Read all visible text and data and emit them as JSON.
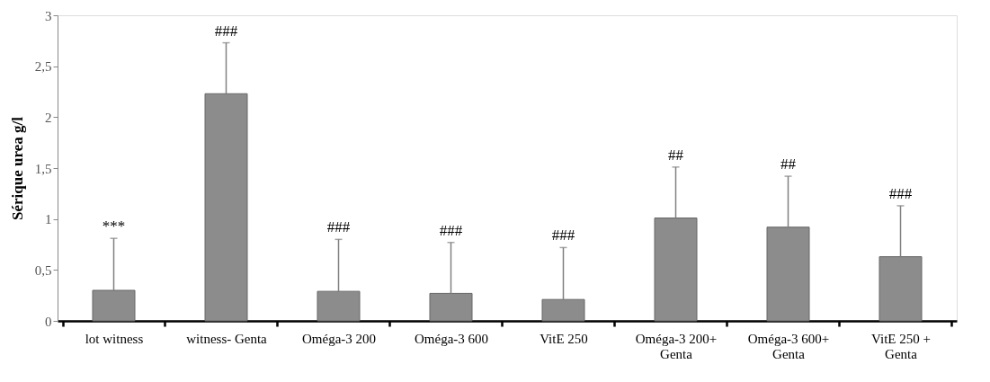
{
  "chart_data": {
    "type": "bar",
    "ylabel": "Sérique urea g/l",
    "categories": [
      "lot witness",
      "witness- Genta",
      "Oméga-3  200",
      "Oméga-3  600",
      "VitE 250",
      "Oméga-3  200+\nGenta",
      "Oméga-3  600+\nGenta",
      "VitE 250 +\nGenta"
    ],
    "values": [
      0.3,
      2.23,
      0.29,
      0.27,
      0.21,
      1.01,
      0.92,
      0.63
    ],
    "errors": [
      [
        0.3,
        0.81
      ],
      [
        2.23,
        2.73
      ],
      [
        0.29,
        0.8
      ],
      [
        0.27,
        0.77
      ],
      [
        0.21,
        0.72
      ],
      [
        1.01,
        1.51
      ],
      [
        0.92,
        1.42
      ],
      [
        0.63,
        1.13
      ]
    ],
    "color": "#8c8c8c",
    "ylim": [
      0,
      3
    ],
    "yticks": [
      0,
      {
        "value": 0.5,
        "label": "0,5"
      },
      1,
      {
        "value": 1.5,
        "label": "1,5"
      },
      2,
      {
        "value": 2.5,
        "label": "2,5"
      },
      3
    ],
    "grid": false,
    "annotations": [
      {
        "text": "***",
        "x": "lot witness",
        "y": 0.81
      },
      {
        "text": "###",
        "x": "witness- Genta",
        "y": 2.73
      },
      {
        "text": "###",
        "x": "Oméga-3  200",
        "y": 0.8
      },
      {
        "text": "###",
        "x": "Oméga-3  600",
        "y": 0.77
      },
      {
        "text": "###",
        "x": "VitE 250",
        "y": 0.72
      },
      {
        "text": "##",
        "x": "Oméga-3  200+\nGenta",
        "y": 1.51
      },
      {
        "text": "##",
        "x": "Oméga-3  600+\nGenta",
        "y": 1.42
      },
      {
        "text": "###",
        "x": "VitE 250 +\nGenta",
        "y": 1.13
      }
    ]
  }
}
